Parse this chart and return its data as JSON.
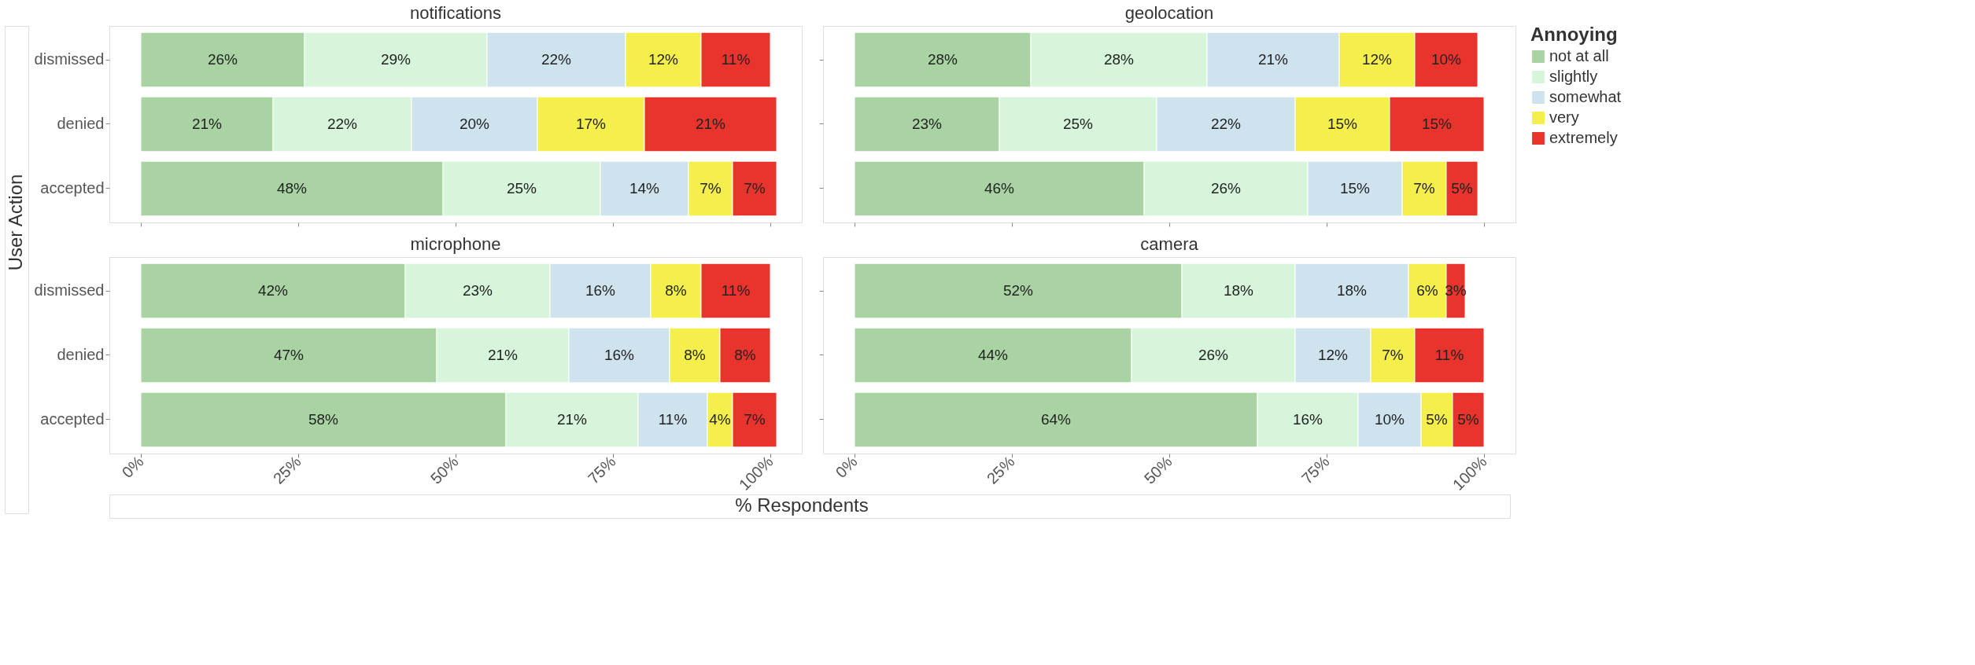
{
  "chart_data": [
    {
      "type": "bar",
      "title": "notifications",
      "ylabel": "User Action",
      "legend_title": "Annoying",
      "legend": "right",
      "orientation": "horizontal",
      "stacked": true,
      "tick_labels": "y",
      "categories": [
        "dismissed",
        "denied",
        "accepted"
      ],
      "xlim": [
        -5,
        105
      ],
      "xticks": [
        {
          "value": 0,
          "label": "0%"
        },
        {
          "value": 25,
          "label": "25%"
        },
        {
          "value": 50,
          "label": "50%"
        },
        {
          "value": 75,
          "label": "75%"
        },
        {
          "value": 100,
          "label": "100%"
        }
      ],
      "series": [
        {
          "name": "not at all",
          "color": "#a9d3a3",
          "values": [
            26,
            21,
            48
          ],
          "value_labels": [
            "26%",
            "21%",
            "48%"
          ]
        },
        {
          "name": "slightly",
          "color": "#d6f5da",
          "values": [
            29,
            22,
            25
          ],
          "value_labels": [
            "29%",
            "22%",
            "25%"
          ]
        },
        {
          "name": "somewhat",
          "color": "#cfe3ee",
          "values": [
            22,
            20,
            14
          ],
          "value_labels": [
            "22%",
            "20%",
            "14%"
          ]
        },
        {
          "name": "very",
          "color": "#f4ef4a",
          "values": [
            12,
            17,
            7
          ],
          "value_labels": [
            "12%",
            "17%",
            "7%"
          ]
        },
        {
          "name": "extremely",
          "color": "#e8342c",
          "values": [
            11,
            21,
            7
          ],
          "value_labels": [
            "11%",
            "21%",
            "7%"
          ]
        }
      ]
    },
    {
      "type": "bar",
      "title": "geolocation",
      "orientation": "horizontal",
      "stacked": true,
      "tick_labels": false,
      "categories": [
        "dismissed",
        "denied",
        "accepted"
      ],
      "xlim": [
        -5,
        105
      ],
      "xticks": [
        {
          "value": 0,
          "label": "0%"
        },
        {
          "value": 25,
          "label": "25%"
        },
        {
          "value": 50,
          "label": "50%"
        },
        {
          "value": 75,
          "label": "75%"
        },
        {
          "value": 100,
          "label": "100%"
        }
      ],
      "series": [
        {
          "name": "not at all",
          "color": "#a9d3a3",
          "values": [
            28,
            23,
            46
          ],
          "value_labels": [
            "28%",
            "23%",
            "46%"
          ]
        },
        {
          "name": "slightly",
          "color": "#d6f5da",
          "values": [
            28,
            25,
            26
          ],
          "value_labels": [
            "28%",
            "25%",
            "26%"
          ]
        },
        {
          "name": "somewhat",
          "color": "#cfe3ee",
          "values": [
            21,
            22,
            15
          ],
          "value_labels": [
            "21%",
            "22%",
            "15%"
          ]
        },
        {
          "name": "very",
          "color": "#f4ef4a",
          "values": [
            12,
            15,
            7
          ],
          "value_labels": [
            "12%",
            "15%",
            "7%"
          ]
        },
        {
          "name": "extremely",
          "color": "#e8342c",
          "values": [
            10,
            15,
            5
          ],
          "value_labels": [
            "10%",
            "15%",
            "5%"
          ]
        }
      ]
    },
    {
      "type": "bar",
      "title": "microphone",
      "xlabel": "% Respondents",
      "orientation": "horizontal",
      "stacked": true,
      "categories": [
        "dismissed",
        "denied",
        "accepted"
      ],
      "xlim": [
        -5,
        105
      ],
      "xticks": [
        {
          "value": 0,
          "label": "0%"
        },
        {
          "value": 25,
          "label": "25%"
        },
        {
          "value": 50,
          "label": "50%"
        },
        {
          "value": 75,
          "label": "75%"
        },
        {
          "value": 100,
          "label": "100%"
        }
      ],
      "series": [
        {
          "name": "not at all",
          "color": "#a9d3a3",
          "values": [
            42,
            47,
            58
          ],
          "value_labels": [
            "42%",
            "47%",
            "58%"
          ]
        },
        {
          "name": "slightly",
          "color": "#d6f5da",
          "values": [
            23,
            21,
            21
          ],
          "value_labels": [
            "23%",
            "21%",
            "21%"
          ]
        },
        {
          "name": "somewhat",
          "color": "#cfe3ee",
          "values": [
            16,
            16,
            11
          ],
          "value_labels": [
            "16%",
            "16%",
            "11%"
          ]
        },
        {
          "name": "very",
          "color": "#f4ef4a",
          "values": [
            8,
            8,
            4
          ],
          "value_labels": [
            "8%",
            "8%",
            "4%"
          ]
        },
        {
          "name": "extremely",
          "color": "#e8342c",
          "values": [
            11,
            8,
            7
          ],
          "value_labels": [
            "11%",
            "8%",
            "7%"
          ]
        }
      ]
    },
    {
      "type": "bar",
      "title": "camera",
      "orientation": "horizontal",
      "stacked": true,
      "tick_labels": "x",
      "categories": [
        "dismissed",
        "denied",
        "accepted"
      ],
      "xlim": [
        -5,
        105
      ],
      "xticks": [
        {
          "value": 0,
          "label": "0%"
        },
        {
          "value": 25,
          "label": "25%"
        },
        {
          "value": 50,
          "label": "50%"
        },
        {
          "value": 75,
          "label": "75%"
        },
        {
          "value": 100,
          "label": "100%"
        }
      ],
      "series": [
        {
          "name": "not at all",
          "color": "#a9d3a3",
          "values": [
            52,
            44,
            64
          ],
          "value_labels": [
            "52%",
            "44%",
            "64%"
          ]
        },
        {
          "name": "slightly",
          "color": "#d6f5da",
          "values": [
            18,
            26,
            16
          ],
          "value_labels": [
            "18%",
            "26%",
            "16%"
          ]
        },
        {
          "name": "somewhat",
          "color": "#cfe3ee",
          "values": [
            18,
            12,
            10
          ],
          "value_labels": [
            "18%",
            "12%",
            "10%"
          ]
        },
        {
          "name": "very",
          "color": "#f4ef4a",
          "values": [
            6,
            7,
            5
          ],
          "value_labels": [
            "6%",
            "7%",
            "5%"
          ]
        },
        {
          "name": "extremely",
          "color": "#e8342c",
          "values": [
            3,
            11,
            5
          ],
          "value_labels": [
            "3%",
            "11%",
            "5%"
          ]
        }
      ]
    }
  ]
}
